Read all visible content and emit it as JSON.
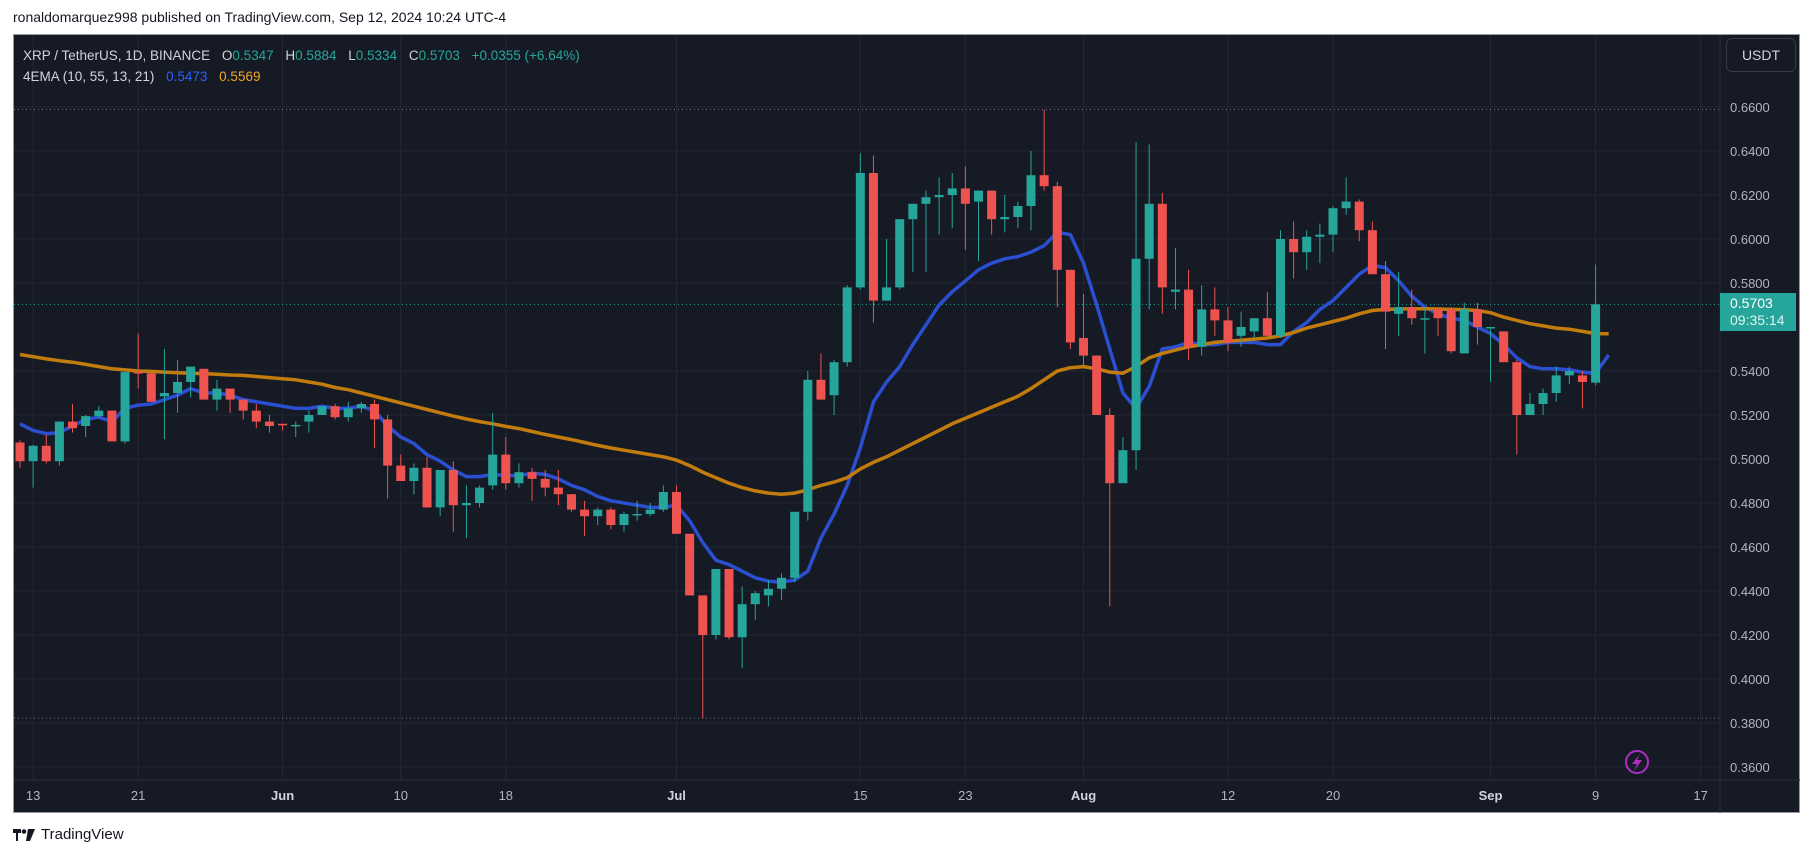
{
  "publish_line": "ronaldomarquez998 published on TradingView.com, Sep 12, 2024 10:24 UTC-4",
  "legend": {
    "symbol": "XRP / TetherUS, 1D, BINANCE",
    "o_label": "O",
    "o": "0.5347",
    "h_label": "H",
    "h": "0.5884",
    "l_label": "L",
    "l": "0.5334",
    "c_label": "C",
    "c": "0.5703",
    "change": "+0.0355 (+6.64%)",
    "indicator": "4EMA (10, 55, 13, 21)",
    "ema_fast": "0.5473",
    "ema_slow": "0.5569"
  },
  "currency_button": "USDT",
  "last_price": {
    "value": "0.5703",
    "countdown": "09:35:14"
  },
  "footer_brand": "TradingView",
  "colors": {
    "background": "#161a25",
    "grid": "#232733",
    "up": "#26a69a",
    "down": "#ef5350",
    "ema_fast": "#2b4fd1",
    "ema_slow": "#c27c0e",
    "axis_text": "#b2b5be",
    "alert_icon": "#b02dc4"
  },
  "chart_data": {
    "type": "candlestick",
    "title": "XRP / TetherUS, 1D, BINANCE",
    "xlabel": "",
    "ylabel": "USDT",
    "ylim": [
      0.35,
      0.675
    ],
    "grid": true,
    "y_ticks": [
      "0.6600",
      "0.6400",
      "0.6200",
      "0.6000",
      "0.5800",
      "0.5400",
      "0.5200",
      "0.5000",
      "0.4800",
      "0.4600",
      "0.4400",
      "0.4200",
      "0.4000",
      "0.3800",
      "0.3600"
    ],
    "x_ticks": [
      {
        "label": "13",
        "index": 1,
        "bold": false
      },
      {
        "label": "21",
        "index": 9,
        "bold": false
      },
      {
        "label": "Jun",
        "index": 20,
        "bold": true
      },
      {
        "label": "10",
        "index": 29,
        "bold": false
      },
      {
        "label": "18",
        "index": 37,
        "bold": false
      },
      {
        "label": "Jul",
        "index": 50,
        "bold": true
      },
      {
        "label": "15",
        "index": 64,
        "bold": false
      },
      {
        "label": "23",
        "index": 72,
        "bold": false
      },
      {
        "label": "Aug",
        "index": 81,
        "bold": true
      },
      {
        "label": "12",
        "index": 92,
        "bold": false
      },
      {
        "label": "20",
        "index": 100,
        "bold": false
      },
      {
        "label": "Sep",
        "index": 112,
        "bold": true
      },
      {
        "label": "9",
        "index": 120,
        "bold": false
      },
      {
        "label": "17",
        "index": 128,
        "bold": false
      }
    ],
    "high_line": 0.6588,
    "low_line": 0.3822,
    "ohlc": [
      [
        0.5075,
        0.5085,
        0.496,
        0.499
      ],
      [
        0.499,
        0.5065,
        0.487,
        0.506
      ],
      [
        0.506,
        0.511,
        0.498,
        0.499
      ],
      [
        0.499,
        0.517,
        0.497,
        0.517
      ],
      [
        0.517,
        0.525,
        0.512,
        0.514
      ],
      [
        0.515,
        0.52,
        0.51,
        0.5195
      ],
      [
        0.5195,
        0.524,
        0.5185,
        0.522
      ],
      [
        0.522,
        0.522,
        0.508,
        0.508
      ],
      [
        0.508,
        0.54,
        0.507,
        0.5395
      ],
      [
        0.5395,
        0.557,
        0.532,
        0.539
      ],
      [
        0.539,
        0.539,
        0.526,
        0.526
      ],
      [
        0.5285,
        0.55,
        0.509,
        0.53
      ],
      [
        0.53,
        0.545,
        0.521,
        0.535
      ],
      [
        0.535,
        0.542,
        0.528,
        0.542
      ],
      [
        0.541,
        0.541,
        0.527,
        0.527
      ],
      [
        0.527,
        0.536,
        0.522,
        0.532
      ],
      [
        0.532,
        0.531,
        0.521,
        0.527
      ],
      [
        0.527,
        0.527,
        0.518,
        0.522
      ],
      [
        0.522,
        0.525,
        0.514,
        0.517
      ],
      [
        0.517,
        0.52,
        0.512,
        0.515
      ],
      [
        0.516,
        0.516,
        0.513,
        0.5155
      ],
      [
        0.5155,
        0.517,
        0.51,
        0.5155
      ],
      [
        0.517,
        0.522,
        0.512,
        0.52
      ],
      [
        0.52,
        0.524,
        0.52,
        0.524
      ],
      [
        0.524,
        0.525,
        0.518,
        0.519
      ],
      [
        0.519,
        0.526,
        0.517,
        0.523
      ],
      [
        0.523,
        0.526,
        0.521,
        0.525
      ],
      [
        0.525,
        0.527,
        0.505,
        0.518
      ],
      [
        0.518,
        0.52,
        0.482,
        0.497
      ],
      [
        0.497,
        0.502,
        0.496,
        0.49
      ],
      [
        0.49,
        0.498,
        0.484,
        0.496
      ],
      [
        0.496,
        0.501,
        0.482,
        0.478
      ],
      [
        0.478,
        0.494,
        0.474,
        0.495
      ],
      [
        0.495,
        0.499,
        0.467,
        0.479
      ],
      [
        0.479,
        0.488,
        0.464,
        0.48
      ],
      [
        0.48,
        0.488,
        0.478,
        0.487
      ],
      [
        0.488,
        0.521,
        0.486,
        0.502
      ],
      [
        0.502,
        0.51,
        0.486,
        0.489
      ],
      [
        0.489,
        0.498,
        0.487,
        0.494
      ],
      [
        0.494,
        0.496,
        0.481,
        0.491
      ],
      [
        0.491,
        0.495,
        0.483,
        0.487
      ],
      [
        0.487,
        0.495,
        0.479,
        0.484
      ],
      [
        0.484,
        0.484,
        0.476,
        0.477
      ],
      [
        0.477,
        0.481,
        0.465,
        0.474
      ],
      [
        0.474,
        0.478,
        0.47,
        0.477
      ],
      [
        0.477,
        0.478,
        0.468,
        0.47
      ],
      [
        0.47,
        0.476,
        0.467,
        0.475
      ],
      [
        0.475,
        0.481,
        0.472,
        0.475
      ],
      [
        0.475,
        0.48,
        0.474,
        0.477
      ],
      [
        0.477,
        0.488,
        0.476,
        0.485
      ],
      [
        0.485,
        0.488,
        0.47,
        0.466
      ],
      [
        0.466,
        0.466,
        0.438,
        0.438
      ],
      [
        0.438,
        0.438,
        0.3822,
        0.42
      ],
      [
        0.42,
        0.45,
        0.418,
        0.45
      ],
      [
        0.45,
        0.45,
        0.418,
        0.419
      ],
      [
        0.419,
        0.442,
        0.405,
        0.434
      ],
      [
        0.434,
        0.44,
        0.427,
        0.439
      ],
      [
        0.438,
        0.445,
        0.433,
        0.441
      ],
      [
        0.441,
        0.448,
        0.436,
        0.446
      ],
      [
        0.446,
        0.468,
        0.444,
        0.476
      ],
      [
        0.476,
        0.54,
        0.472,
        0.536
      ],
      [
        0.536,
        0.548,
        0.527,
        0.527
      ],
      [
        0.529,
        0.545,
        0.52,
        0.544
      ],
      [
        0.544,
        0.579,
        0.542,
        0.578
      ],
      [
        0.578,
        0.639,
        0.577,
        0.63
      ],
      [
        0.63,
        0.638,
        0.562,
        0.572
      ],
      [
        0.572,
        0.6,
        0.572,
        0.578
      ],
      [
        0.578,
        0.609,
        0.577,
        0.609
      ],
      [
        0.609,
        0.611,
        0.585,
        0.616
      ],
      [
        0.616,
        0.622,
        0.585,
        0.619
      ],
      [
        0.619,
        0.628,
        0.602,
        0.62
      ],
      [
        0.62,
        0.63,
        0.605,
        0.623
      ],
      [
        0.623,
        0.633,
        0.595,
        0.616
      ],
      [
        0.617,
        0.608,
        0.59,
        0.622
      ],
      [
        0.622,
        0.619,
        0.602,
        0.609
      ],
      [
        0.609,
        0.62,
        0.603,
        0.61
      ],
      [
        0.61,
        0.617,
        0.605,
        0.615
      ],
      [
        0.615,
        0.64,
        0.604,
        0.629
      ],
      [
        0.629,
        0.6588,
        0.622,
        0.624
      ],
      [
        0.624,
        0.626,
        0.569,
        0.586
      ],
      [
        0.586,
        0.586,
        0.55,
        0.553
      ],
      [
        0.555,
        0.575,
        0.542,
        0.547
      ],
      [
        0.547,
        0.544,
        0.525,
        0.52
      ],
      [
        0.52,
        0.523,
        0.433,
        0.489
      ],
      [
        0.489,
        0.51,
        0.49,
        0.504
      ],
      [
        0.504,
        0.644,
        0.495,
        0.591
      ],
      [
        0.591,
        0.643,
        0.568,
        0.616
      ],
      [
        0.616,
        0.621,
        0.566,
        0.578
      ],
      [
        0.576,
        0.596,
        0.568,
        0.577
      ],
      [
        0.577,
        0.586,
        0.545,
        0.551
      ],
      [
        0.551,
        0.579,
        0.547,
        0.568
      ],
      [
        0.568,
        0.578,
        0.556,
        0.563
      ],
      [
        0.563,
        0.569,
        0.549,
        0.553
      ],
      [
        0.556,
        0.567,
        0.551,
        0.56
      ],
      [
        0.558,
        0.563,
        0.555,
        0.564
      ],
      [
        0.564,
        0.576,
        0.558,
        0.556
      ],
      [
        0.556,
        0.604,
        0.555,
        0.6
      ],
      [
        0.6,
        0.608,
        0.582,
        0.594
      ],
      [
        0.594,
        0.604,
        0.586,
        0.601
      ],
      [
        0.601,
        0.607,
        0.589,
        0.602
      ],
      [
        0.602,
        0.615,
        0.594,
        0.614
      ],
      [
        0.614,
        0.628,
        0.611,
        0.617
      ],
      [
        0.617,
        0.618,
        0.599,
        0.604
      ],
      [
        0.604,
        0.608,
        0.59,
        0.584
      ],
      [
        0.584,
        0.59,
        0.55,
        0.567
      ],
      [
        0.566,
        0.585,
        0.556,
        0.569
      ],
      [
        0.569,
        0.577,
        0.561,
        0.564
      ],
      [
        0.564,
        0.569,
        0.548,
        0.564
      ],
      [
        0.568,
        0.569,
        0.556,
        0.564
      ],
      [
        0.568,
        0.569,
        0.548,
        0.549
      ],
      [
        0.548,
        0.571,
        0.548,
        0.568
      ],
      [
        0.568,
        0.571,
        0.552,
        0.56
      ],
      [
        0.56,
        0.56,
        0.535,
        0.56
      ],
      [
        0.558,
        0.558,
        0.545,
        0.544
      ],
      [
        0.544,
        0.545,
        0.502,
        0.52
      ],
      [
        0.52,
        0.53,
        0.52,
        0.525
      ],
      [
        0.525,
        0.532,
        0.52,
        0.53
      ],
      [
        0.53,
        0.542,
        0.526,
        0.538
      ],
      [
        0.538,
        0.542,
        0.534,
        0.54
      ],
      [
        0.538,
        0.54,
        0.523,
        0.535
      ],
      [
        0.5347,
        0.5884,
        0.5334,
        0.5703
      ]
    ],
    "series": [
      {
        "name": "EMA 10",
        "color": "#2b4fd1",
        "last": 0.5473,
        "values": [
          0.516,
          0.513,
          0.5115,
          0.512,
          0.515,
          0.518,
          0.519,
          0.517,
          0.523,
          0.5245,
          0.525,
          0.527,
          0.529,
          0.532,
          0.53,
          0.53,
          0.529,
          0.527,
          0.526,
          0.525,
          0.524,
          0.523,
          0.523,
          0.524,
          0.523,
          0.523,
          0.524,
          0.522,
          0.515,
          0.51,
          0.507,
          0.502,
          0.499,
          0.495,
          0.492,
          0.492,
          0.493,
          0.4925,
          0.4925,
          0.4935,
          0.493,
          0.491,
          0.488,
          0.486,
          0.483,
          0.481,
          0.48,
          0.479,
          0.478,
          0.478,
          0.479,
          0.472,
          0.462,
          0.454,
          0.452,
          0.449,
          0.446,
          0.4445,
          0.444,
          0.445,
          0.449,
          0.464,
          0.475,
          0.488,
          0.505,
          0.526,
          0.535,
          0.542,
          0.552,
          0.561,
          0.57,
          0.576,
          0.581,
          0.586,
          0.589,
          0.591,
          0.592,
          0.594,
          0.597,
          0.603,
          0.602,
          0.589,
          0.57,
          0.55,
          0.53,
          0.523,
          0.533,
          0.55,
          0.551,
          0.553,
          0.552,
          0.552,
          0.553,
          0.553,
          0.553,
          0.552,
          0.552,
          0.558,
          0.562,
          0.568,
          0.572,
          0.578,
          0.584,
          0.588,
          0.587,
          0.581,
          0.574,
          0.569,
          0.566,
          0.564,
          0.563,
          0.56,
          0.557,
          0.552,
          0.546,
          0.542,
          0.541,
          0.541,
          0.5405,
          0.5395,
          0.539,
          0.5473
        ]
      },
      {
        "name": "EMA 55",
        "color": "#c27c0e",
        "last": 0.5569,
        "values": [
          0.5475,
          0.5465,
          0.5455,
          0.5447,
          0.544,
          0.543,
          0.542,
          0.541,
          0.5405,
          0.54,
          0.5398,
          0.5395,
          0.5392,
          0.539,
          0.5388,
          0.5385,
          0.5382,
          0.538,
          0.5375,
          0.537,
          0.5365,
          0.536,
          0.535,
          0.534,
          0.5325,
          0.5315,
          0.53,
          0.5285,
          0.527,
          0.5255,
          0.524,
          0.5225,
          0.521,
          0.5195,
          0.5182,
          0.517,
          0.516,
          0.5148,
          0.5138,
          0.5125,
          0.5112,
          0.51,
          0.5088,
          0.5075,
          0.5062,
          0.505,
          0.504,
          0.503,
          0.502,
          0.501,
          0.4995,
          0.497,
          0.494,
          0.4915,
          0.489,
          0.487,
          0.4855,
          0.4845,
          0.484,
          0.4845,
          0.486,
          0.488,
          0.4895,
          0.4915,
          0.4955,
          0.4985,
          0.501,
          0.504,
          0.507,
          0.51,
          0.513,
          0.516,
          0.5185,
          0.521,
          0.5235,
          0.526,
          0.5285,
          0.532,
          0.536,
          0.54,
          0.5415,
          0.542,
          0.541,
          0.5395,
          0.539,
          0.542,
          0.546,
          0.548,
          0.5495,
          0.551,
          0.552,
          0.553,
          0.5535,
          0.554,
          0.5545,
          0.555,
          0.556,
          0.5575,
          0.5595,
          0.561,
          0.5625,
          0.564,
          0.566,
          0.5675,
          0.568,
          0.5682,
          0.5683,
          0.5683,
          0.5682,
          0.568,
          0.5678,
          0.5675,
          0.5665,
          0.5645,
          0.563,
          0.5615,
          0.5605,
          0.5595,
          0.559,
          0.558,
          0.557,
          0.5569
        ]
      }
    ]
  }
}
